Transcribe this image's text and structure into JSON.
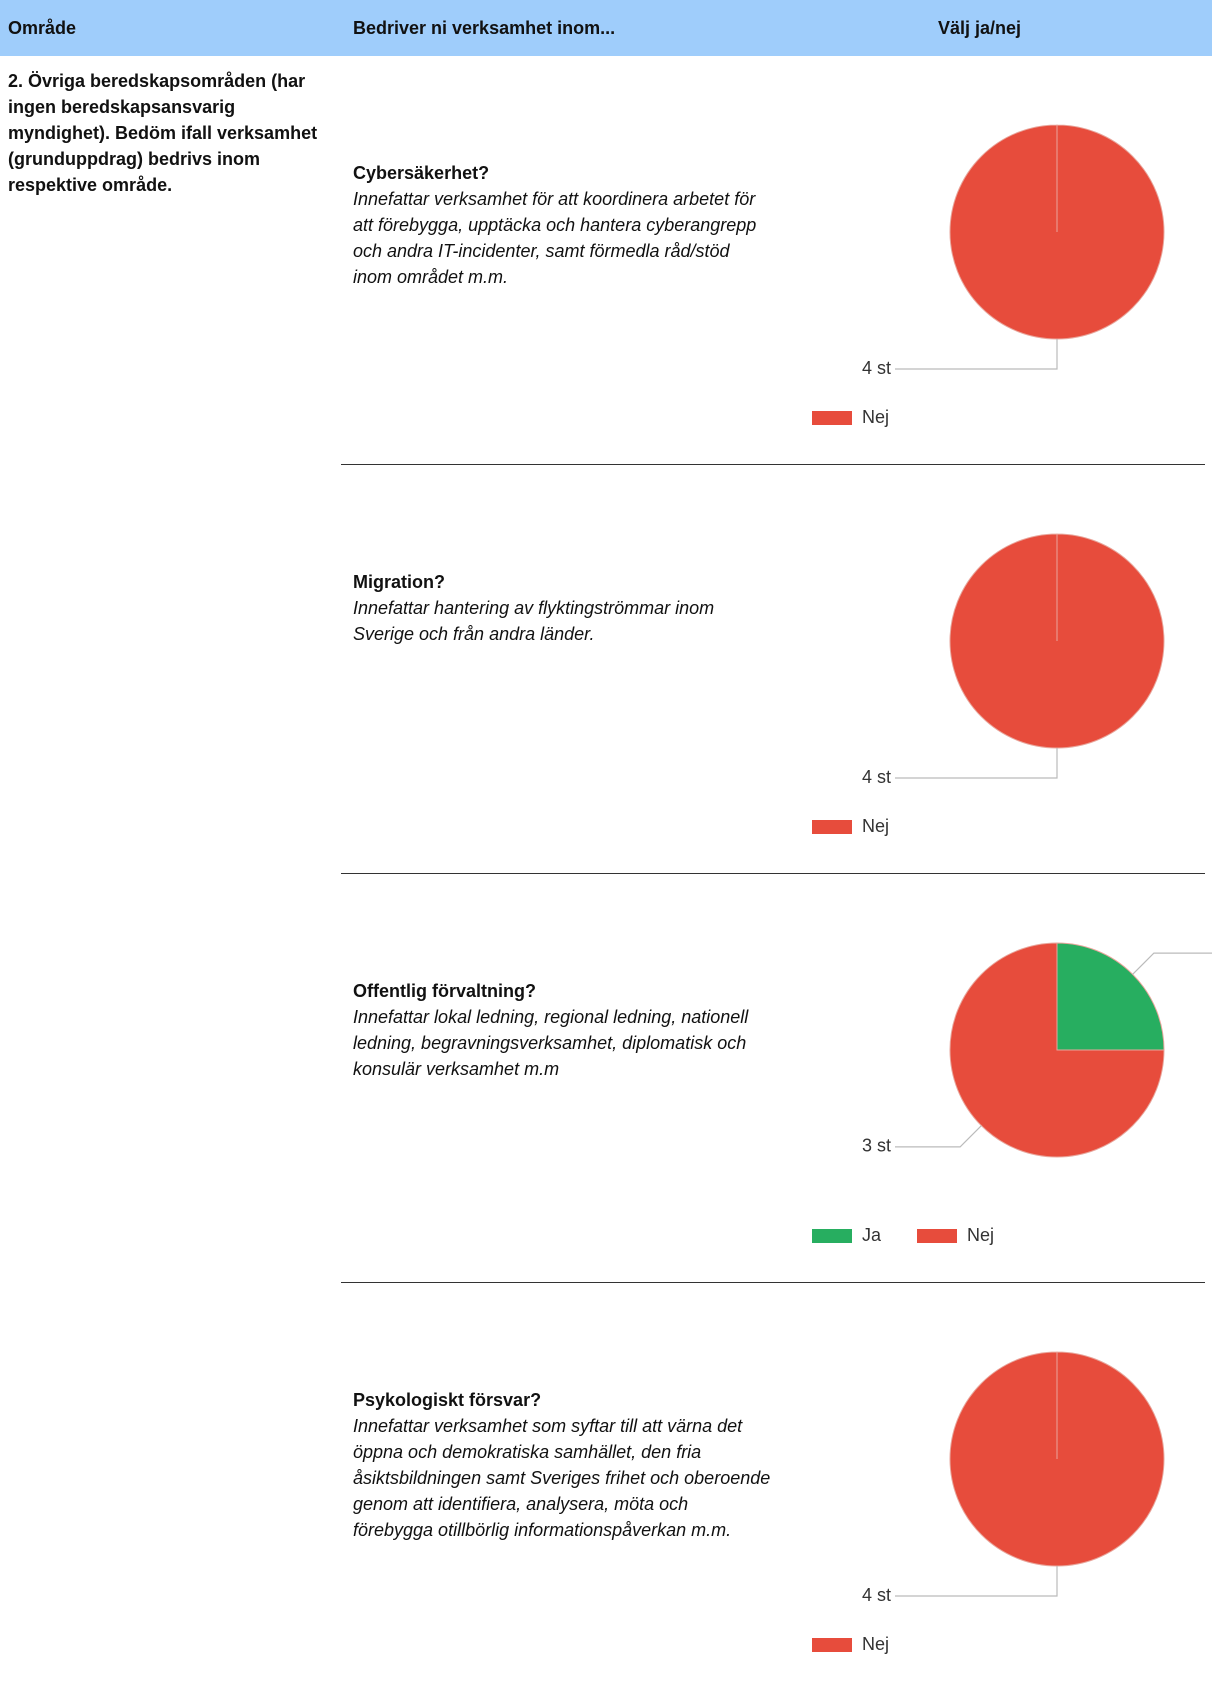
{
  "header": [
    "Område",
    "Bedriver ni verksamhet inom...",
    "Välj ja/nej"
  ],
  "area": "2. Övriga beredskapsområden (har ingen beredskapsansvarig myndighet). Bedöm ifall verksamhet (grunduppdrag) bedrivs inom respektive område.",
  "rows": [
    {
      "question": "Cybersäkerhet?",
      "description": "Innefattar verksamhet för att koordinera arbetet för att förebygga, upptäcka och hantera cyberangrepp och andra IT-incidenter, samt förmedla råd/stöd inom området m.m.",
      "chart": {
        "type": "pie",
        "categories": [
          "Nej"
        ],
        "values": [
          4
        ],
        "value_labels": [
          "4 st"
        ],
        "colors": [
          "#e74c3c"
        ]
      }
    },
    {
      "question": "Migration?",
      "description": "Innefattar hantering av flyktingströmmar inom Sverige och från andra länder.",
      "chart": {
        "type": "pie",
        "categories": [
          "Nej"
        ],
        "values": [
          4
        ],
        "value_labels": [
          "4 st"
        ],
        "colors": [
          "#e74c3c"
        ]
      }
    },
    {
      "question": "Offentlig förvaltning?",
      "description": "Innefattar lokal ledning, regional ledning, nationell ledning, begravningsverksamhet, diplomatisk och konsulär verksamhet m.m",
      "chart": {
        "type": "pie",
        "categories": [
          "Ja",
          "Nej"
        ],
        "values": [
          1,
          3
        ],
        "value_labels": [
          null,
          "3 st"
        ],
        "colors": [
          "#27ae60",
          "#e74c3c"
        ]
      }
    },
    {
      "question": "Psykologiskt försvar?",
      "description": "Innefattar verksamhet som syftar till att värna det öppna och demokratiska samhället, den fria åsiktsbildningen samt Sveriges frihet och oberoende genom att identifiera, analysera, möta och förebygga otillbörlig informationspåverkan m.m.",
      "chart": {
        "type": "pie",
        "categories": [
          "Nej"
        ],
        "values": [
          4
        ],
        "value_labels": [
          "4 st"
        ],
        "colors": [
          "#e74c3c"
        ]
      }
    }
  ]
}
